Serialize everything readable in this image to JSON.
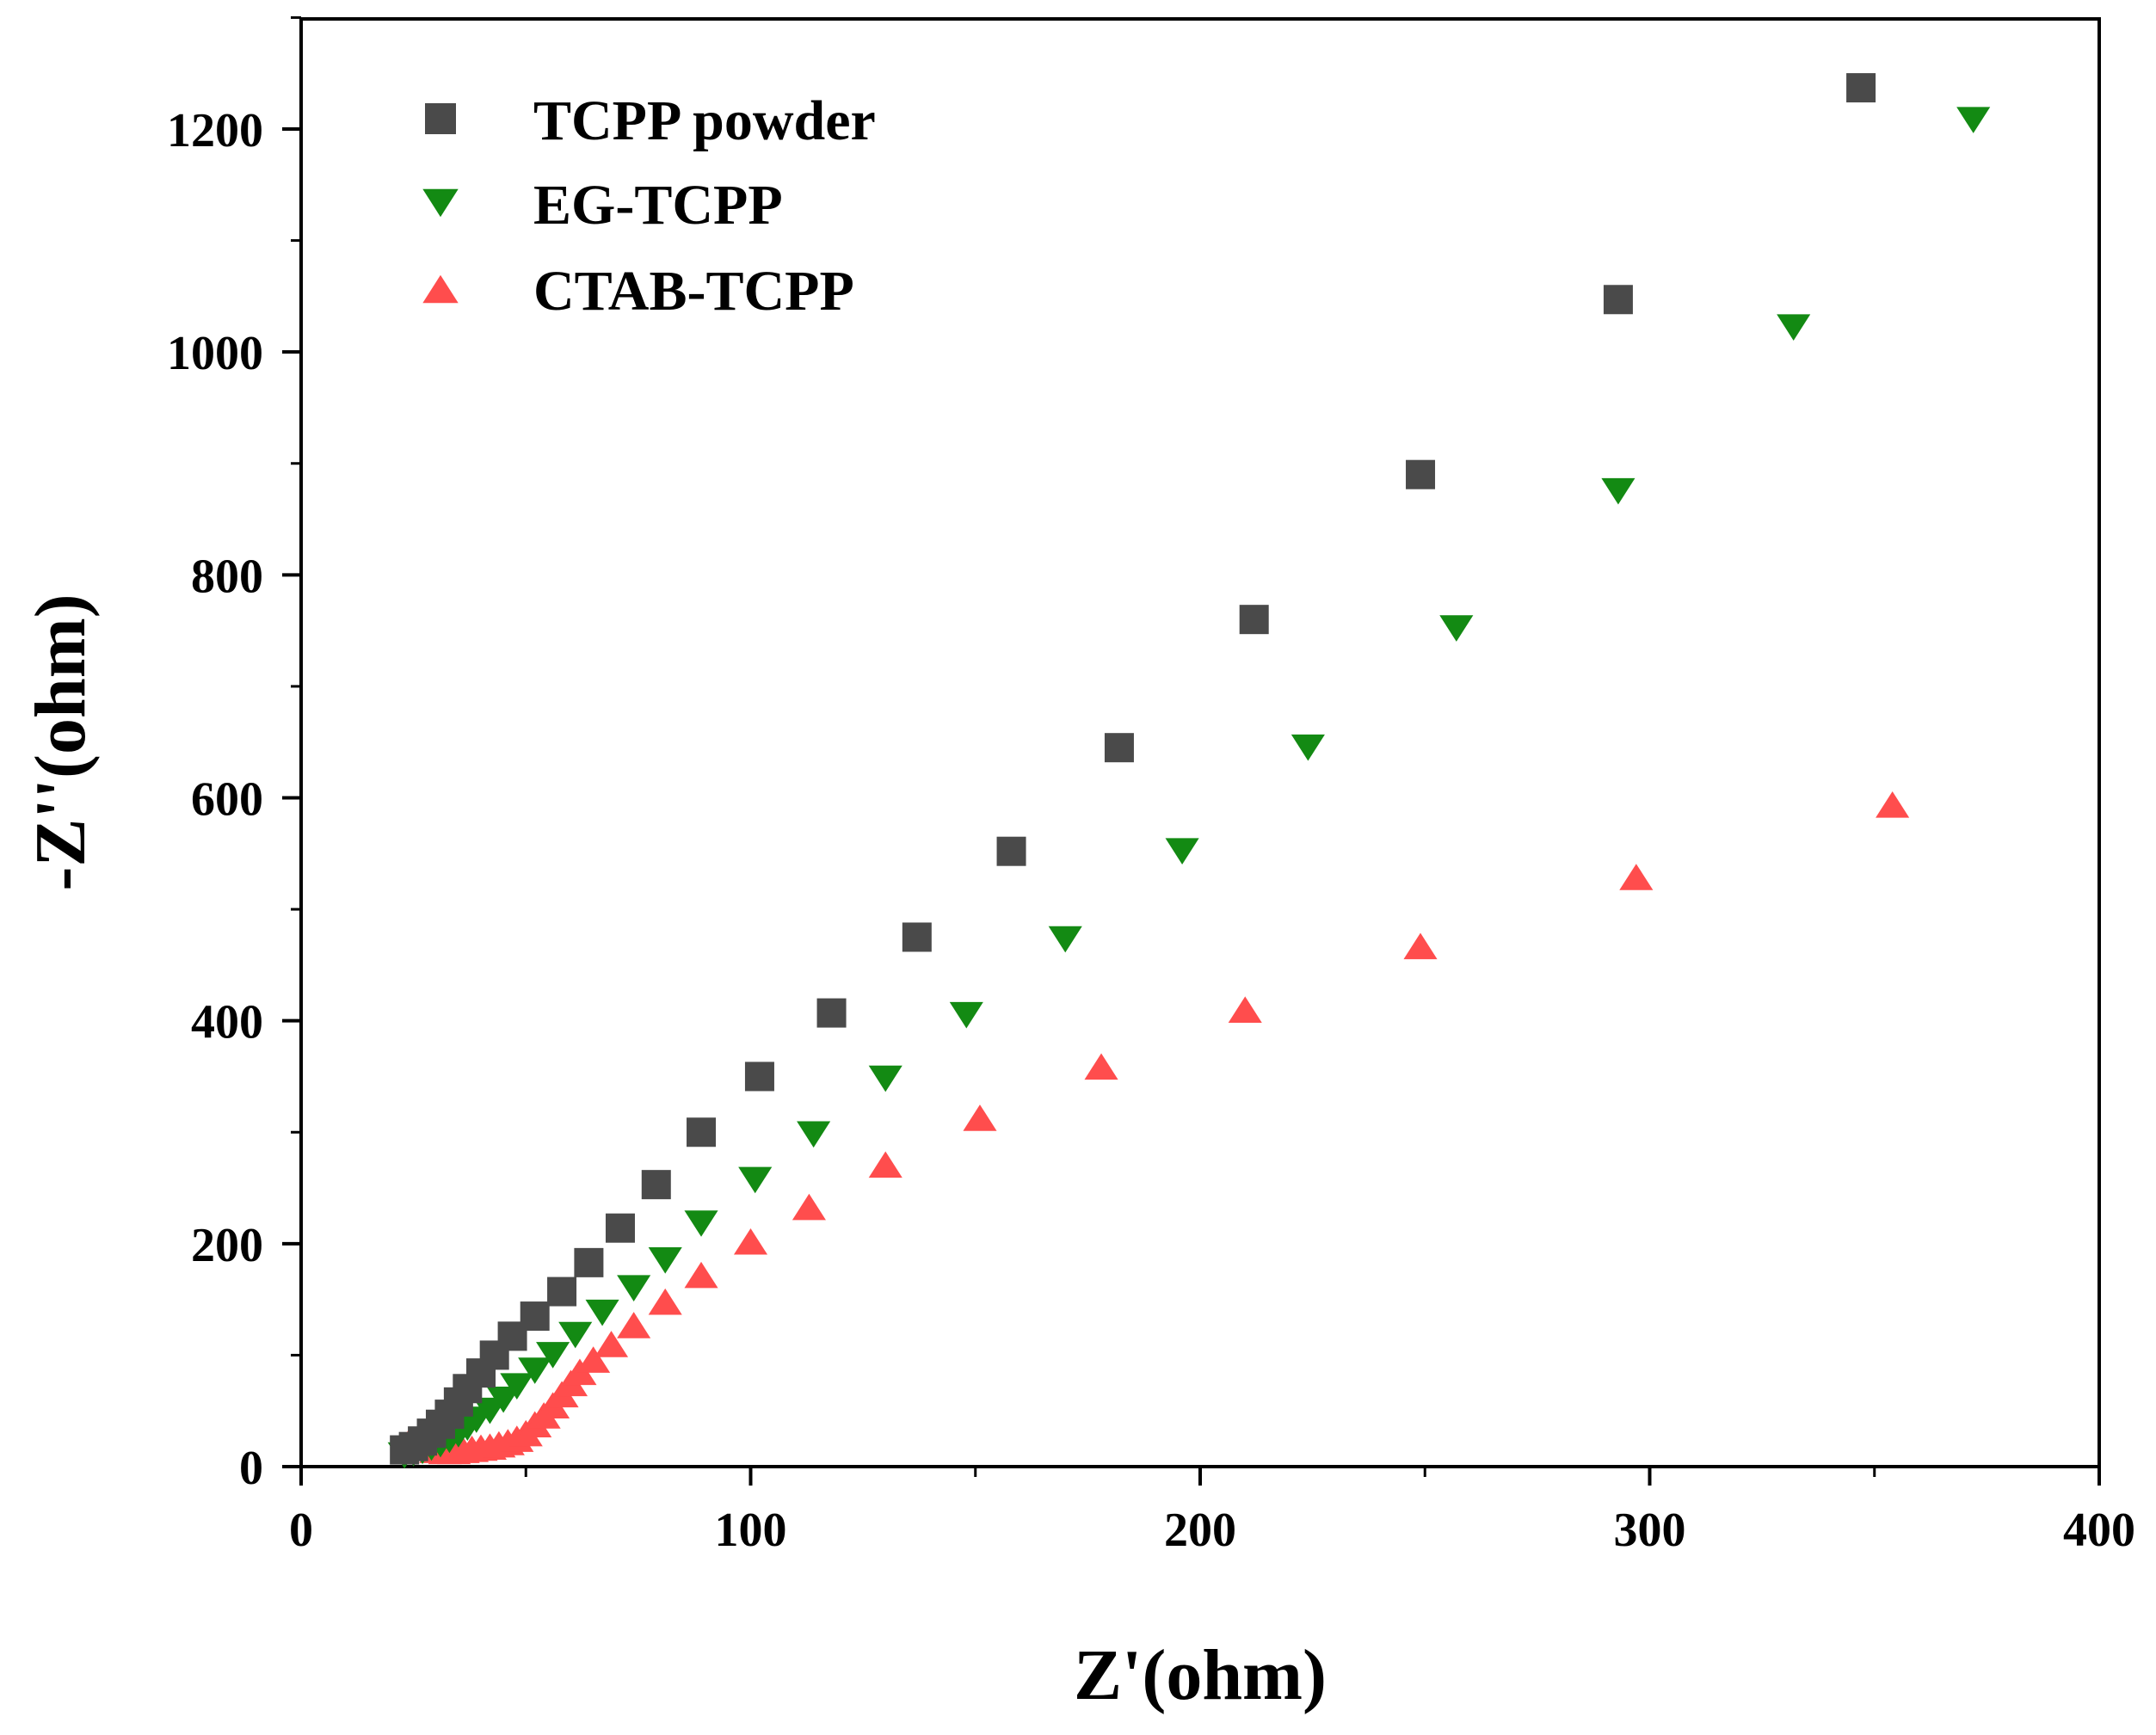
{
  "chart_data": {
    "type": "scatter",
    "title": "",
    "xlabel": "Z'(ohm)",
    "ylabel": "-Z''(ohm)",
    "xlim": [
      0,
      400
    ],
    "ylim": [
      0,
      1300
    ],
    "xticks": [
      0,
      100,
      200,
      300,
      400
    ],
    "yticks": [
      0,
      200,
      400,
      600,
      800,
      1000,
      1200
    ],
    "grid": false,
    "legend_position": "top-left",
    "series": [
      {
        "name": "TCPP powder",
        "marker": "square",
        "color": "#4a4a4a",
        "points": [
          [
            23,
            15
          ],
          [
            25,
            18
          ],
          [
            27,
            23
          ],
          [
            29,
            30
          ],
          [
            31,
            38
          ],
          [
            33,
            47
          ],
          [
            35,
            58
          ],
          [
            37,
            70
          ],
          [
            40,
            84
          ],
          [
            43,
            100
          ],
          [
            47,
            117
          ],
          [
            52,
            135
          ],
          [
            58,
            157
          ],
          [
            64,
            183
          ],
          [
            71,
            214
          ],
          [
            79,
            253
          ],
          [
            89,
            300
          ],
          [
            102,
            350
          ],
          [
            118,
            407
          ],
          [
            137,
            475
          ],
          [
            158,
            552
          ],
          [
            182,
            645
          ],
          [
            212,
            760
          ],
          [
            249,
            890
          ],
          [
            293,
            1047
          ],
          [
            347,
            1237
          ]
        ]
      },
      {
        "name": "EG-TCPP",
        "marker": "triangle-down",
        "color": "#138a13",
        "points": [
          [
            23,
            10
          ],
          [
            25,
            12
          ],
          [
            27,
            14
          ],
          [
            29,
            17
          ],
          [
            31,
            20
          ],
          [
            33,
            24
          ],
          [
            35,
            29
          ],
          [
            37,
            35
          ],
          [
            39,
            42
          ],
          [
            42,
            50
          ],
          [
            45,
            60
          ],
          [
            48,
            72
          ],
          [
            52,
            86
          ],
          [
            56,
            100
          ],
          [
            61,
            118
          ],
          [
            67,
            138
          ],
          [
            74,
            160
          ],
          [
            81,
            185
          ],
          [
            89,
            218
          ],
          [
            101,
            257
          ],
          [
            114,
            298
          ],
          [
            130,
            348
          ],
          [
            148,
            405
          ],
          [
            170,
            473
          ],
          [
            196,
            552
          ],
          [
            224,
            645
          ],
          [
            257,
            752
          ],
          [
            293,
            875
          ],
          [
            332,
            1022
          ],
          [
            372,
            1208
          ]
        ]
      },
      {
        "name": "CTAB-TCPP",
        "marker": "triangle-up",
        "color": "#ff4d4d",
        "points": [
          [
            24,
            22
          ],
          [
            26,
            20
          ],
          [
            28,
            17
          ],
          [
            30,
            15
          ],
          [
            32,
            14
          ],
          [
            34,
            14
          ],
          [
            36,
            15
          ],
          [
            38,
            16
          ],
          [
            40,
            17
          ],
          [
            42,
            18
          ],
          [
            44,
            20
          ],
          [
            46,
            22
          ],
          [
            48,
            25
          ],
          [
            50,
            30
          ],
          [
            52,
            38
          ],
          [
            54,
            46
          ],
          [
            56,
            55
          ],
          [
            58,
            65
          ],
          [
            60,
            75
          ],
          [
            62,
            85
          ],
          [
            65,
            96
          ],
          [
            69,
            110
          ],
          [
            74,
            127
          ],
          [
            81,
            148
          ],
          [
            89,
            172
          ],
          [
            100,
            202
          ],
          [
            113,
            233
          ],
          [
            130,
            271
          ],
          [
            151,
            313
          ],
          [
            178,
            359
          ],
          [
            210,
            410
          ],
          [
            249,
            467
          ],
          [
            297,
            529
          ],
          [
            354,
            594
          ]
        ]
      }
    ]
  }
}
